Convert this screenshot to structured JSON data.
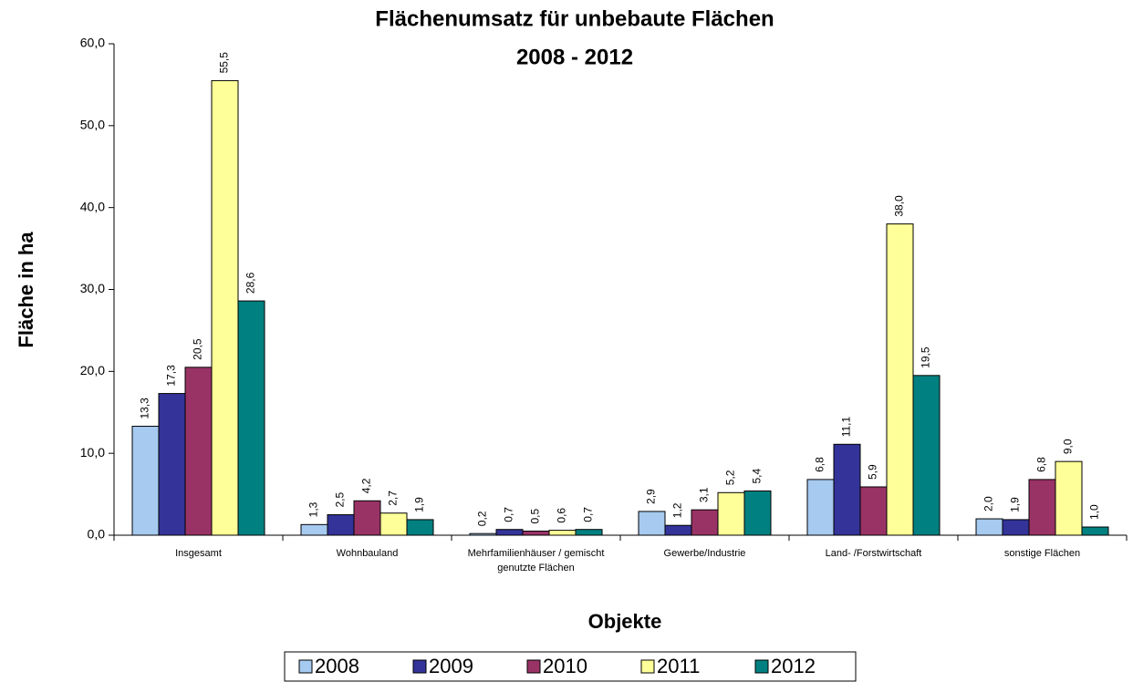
{
  "chart_data": {
    "type": "bar",
    "title": "Flächenumsatz für unbebaute Flächen",
    "subtitle": "2008 - 2012",
    "y_label": "Fläche in ha",
    "x_label": "Objekte",
    "categories": [
      "Insgesamt",
      "Wohnbauland",
      "Mehrfamilienhäuser / gemischt genutzte Flächen",
      "Gewerbe/Industrie",
      "Land- /Forstwirtschaft",
      "sonstige Flächen"
    ],
    "series": [
      {
        "name": "2008",
        "color": "#a6caf0",
        "values": [
          13.3,
          1.3,
          0.2,
          2.9,
          6.8,
          2.0
        ],
        "value_labels": [
          "13,3",
          "1,3",
          "0,2",
          "2,9",
          "6,8",
          "2,0"
        ]
      },
      {
        "name": "2009",
        "color": "#333399",
        "values": [
          17.3,
          2.5,
          0.7,
          1.2,
          11.1,
          1.9
        ],
        "value_labels": [
          "17,3",
          "2,5",
          "0,7",
          "1,2",
          "11,1",
          "1,9"
        ]
      },
      {
        "name": "2010",
        "color": "#993366",
        "values": [
          20.5,
          4.2,
          0.5,
          3.1,
          5.9,
          6.8
        ],
        "value_labels": [
          "20,5",
          "4,2",
          "0,5",
          "3,1",
          "5,9",
          "6,8"
        ]
      },
      {
        "name": "2011",
        "color": "#ffff99",
        "values": [
          55.5,
          2.7,
          0.6,
          5.2,
          38.0,
          9.0
        ],
        "value_labels": [
          "55,5",
          "2,7",
          "0,6",
          "5,2",
          "38,0",
          "9,0"
        ]
      },
      {
        "name": "2012",
        "color": "#008080",
        "values": [
          28.6,
          1.9,
          0.7,
          5.4,
          19.5,
          1.0
        ],
        "value_labels": [
          "28,6",
          "1,9",
          "0,7",
          "5,4",
          "19,5",
          "1,0"
        ]
      }
    ],
    "ylim": [
      0,
      60
    ],
    "yticks": [
      {
        "value": 0,
        "label": "0,0"
      },
      {
        "value": 10,
        "label": "10,0"
      },
      {
        "value": 20,
        "label": "20,0"
      },
      {
        "value": 30,
        "label": "30,0"
      },
      {
        "value": 40,
        "label": "40,0"
      },
      {
        "value": 50,
        "label": "50,0"
      },
      {
        "value": 60,
        "label": "60,0"
      }
    ],
    "grid": false,
    "legend": "bottom"
  }
}
